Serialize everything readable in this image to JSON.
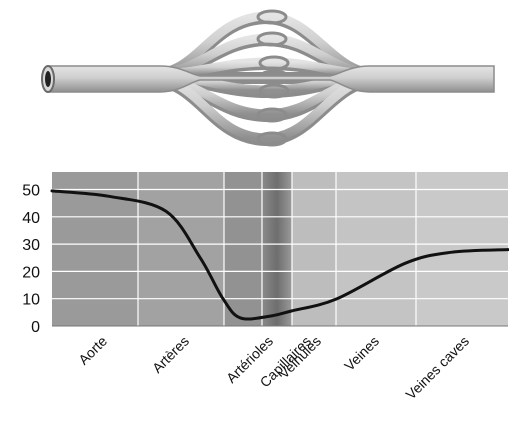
{
  "chart_data": {
    "type": "line",
    "title": "",
    "xlabel": "",
    "ylabel": "",
    "categories": [
      "Aorte",
      "Artères",
      "Artérioles",
      "Capillaires",
      "Veinules",
      "Veines",
      "Veines caves"
    ],
    "y_ticks": [
      0,
      10,
      20,
      30,
      40,
      50
    ],
    "ylim": [
      0,
      55
    ],
    "x_range": [
      0,
      8
    ],
    "grid": true,
    "legend": "none",
    "series": [
      {
        "x": [
          0,
          1,
          2,
          2.6,
          3.0,
          3.3,
          3.8,
          4.2,
          5.0,
          6.2,
          7.0,
          8.0
        ],
        "y": [
          49.5,
          47.5,
          42,
          25,
          10,
          3,
          3.5,
          5.5,
          10,
          23,
          27,
          28
        ]
      }
    ],
    "colors": {
      "line": "#111111",
      "panel_dark": "#9a9a9a",
      "panel_darker": "#8a8a8a",
      "panel_light": "#c4c4c4",
      "capillary_band": "#7a7a7a"
    }
  },
  "illustration": {
    "vessel_color": "#c9c9c9",
    "vessel_shade": "#9a9a9a"
  }
}
